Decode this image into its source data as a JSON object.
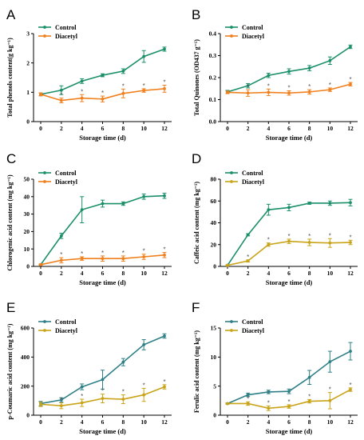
{
  "chart_data": [
    {
      "panel": "A",
      "type": "line",
      "x": [
        0,
        2,
        4,
        6,
        8,
        10,
        12
      ],
      "xlabel": "Storage time (d)",
      "ylabel": "Total phenols content(g kg⁻¹)",
      "ylim": [
        0,
        3
      ],
      "yticks": [
        "0",
        "1",
        "2",
        "3"
      ],
      "yticks_values": [
        0,
        1,
        2,
        3
      ],
      "series": [
        {
          "name": "Control",
          "color": "#1a8f6a",
          "values": [
            0.93,
            1.07,
            1.38,
            1.58,
            1.72,
            2.22,
            2.47
          ],
          "errors": [
            0.05,
            0.15,
            0.08,
            0.05,
            0.08,
            0.2,
            0.07
          ]
        },
        {
          "name": "Diacetyl",
          "color": "#f07f1c",
          "values": [
            0.93,
            0.72,
            0.8,
            0.77,
            0.96,
            1.06,
            1.12
          ],
          "errors": [
            0.05,
            0.08,
            0.12,
            0.1,
            0.15,
            0.06,
            0.12
          ]
        }
      ],
      "stars_x": [
        2,
        4,
        6,
        8,
        10,
        12
      ]
    },
    {
      "panel": "B",
      "type": "line",
      "x": [
        0,
        2,
        4,
        6,
        8,
        10,
        12
      ],
      "xlabel": "Storage time (d)",
      "ylabel": "Total Quinones (OD437 g⁻¹)",
      "ylim": [
        0,
        0.4
      ],
      "yticks": [
        "0.0",
        "0.1",
        "0.2",
        "0.3",
        "0.4"
      ],
      "yticks_values": [
        0,
        0.1,
        0.2,
        0.3,
        0.4
      ],
      "series": [
        {
          "name": "Control",
          "color": "#1a8f6a",
          "values": [
            0.135,
            0.163,
            0.21,
            0.228,
            0.243,
            0.277,
            0.34
          ],
          "errors": [
            0.007,
            0.01,
            0.01,
            0.012,
            0.012,
            0.017,
            0.008
          ]
        },
        {
          "name": "Diacetyl",
          "color": "#f07f1c",
          "values": [
            0.133,
            0.13,
            0.133,
            0.13,
            0.135,
            0.145,
            0.17
          ],
          "errors": [
            0.006,
            0.015,
            0.015,
            0.01,
            0.01,
            0.008,
            0.008
          ]
        }
      ],
      "stars_x": [
        2,
        4,
        6,
        8,
        10,
        12
      ]
    },
    {
      "panel": "C",
      "type": "line",
      "x": [
        0,
        2,
        4,
        6,
        8,
        10,
        12
      ],
      "xlabel": "Storage time (d)",
      "ylabel": "Chlorogenic acid content (mg kg⁻¹)",
      "ylim": [
        0,
        50
      ],
      "yticks": [
        "0",
        "10",
        "20",
        "30",
        "40",
        "50"
      ],
      "yticks_values": [
        0,
        10,
        20,
        30,
        40,
        50
      ],
      "series": [
        {
          "name": "Control",
          "color": "#1a8f6a",
          "values": [
            1,
            17.5,
            32.5,
            36,
            36,
            40,
            40.5
          ],
          "errors": [
            0.3,
            1.5,
            7.5,
            2,
            1,
            1.5,
            1.5
          ]
        },
        {
          "name": "Diacetyl",
          "color": "#f07f1c",
          "values": [
            1,
            3.5,
            4.5,
            4.5,
            4.5,
            5.5,
            6.5
          ],
          "errors": [
            0.3,
            1.5,
            1,
            1.5,
            1.5,
            1.5,
            1.5
          ]
        }
      ],
      "stars_x": [
        2,
        4,
        6,
        8,
        10,
        12
      ]
    },
    {
      "panel": "D",
      "type": "line",
      "x": [
        0,
        2,
        4,
        6,
        8,
        10,
        12
      ],
      "xlabel": "Storage time (d)",
      "ylabel": "Caffeic acid content (mg kg⁻¹)",
      "ylim": [
        0,
        80
      ],
      "yticks": [
        "0",
        "20",
        "40",
        "60",
        "80"
      ],
      "yticks_values": [
        0,
        20,
        40,
        60,
        80
      ],
      "series": [
        {
          "name": "Control",
          "color": "#1a8f6a",
          "values": [
            1,
            29,
            52,
            54,
            58,
            58,
            58.5
          ],
          "errors": [
            0.5,
            1,
            5,
            3,
            1,
            2,
            3
          ]
        },
        {
          "name": "Diacetyl",
          "color": "#c9a318",
          "values": [
            1,
            5,
            20,
            23,
            22,
            21.5,
            22
          ],
          "errors": [
            0.5,
            1,
            1.5,
            2,
            3,
            4,
            2
          ]
        }
      ],
      "stars_x": [
        2,
        4,
        6,
        8,
        10,
        12
      ]
    },
    {
      "panel": "E",
      "type": "line",
      "x": [
        0,
        2,
        4,
        6,
        8,
        10,
        12
      ],
      "xlabel": "Storage time (d)",
      "ylabel": "p-Coumaric acid content (mg kg⁻¹)",
      "ylim": [
        0,
        600
      ],
      "yticks": [
        "0",
        "200",
        "400",
        "600"
      ],
      "yticks_values": [
        0,
        200,
        400,
        600
      ],
      "series": [
        {
          "name": "Control",
          "color": "#2e7f86",
          "values": [
            80,
            105,
            195,
            245,
            365,
            485,
            545
          ],
          "errors": [
            15,
            15,
            20,
            65,
            25,
            35,
            15
          ]
        },
        {
          "name": "Diacetyl",
          "color": "#c9a318",
          "values": [
            75,
            65,
            85,
            115,
            110,
            140,
            195
          ],
          "errors": [
            15,
            20,
            25,
            30,
            30,
            45,
            15
          ]
        }
      ],
      "stars_x": [
        2,
        4,
        6,
        8,
        10,
        12
      ]
    },
    {
      "panel": "F",
      "type": "line",
      "x": [
        0,
        2,
        4,
        6,
        8,
        10,
        12
      ],
      "xlabel": "Storage time (d)",
      "ylabel": "Ferulic acid content (mg kg⁻¹)",
      "ylim": [
        0,
        15
      ],
      "yticks": [
        "0",
        "5",
        "10",
        "15"
      ],
      "yticks_values": [
        0,
        5,
        10,
        15
      ],
      "series": [
        {
          "name": "Control",
          "color": "#2e7f86",
          "values": [
            2,
            3.5,
            4,
            4.1,
            6.5,
            9.2,
            11
          ],
          "errors": [
            0.1,
            0.3,
            0.3,
            0.4,
            1.2,
            1.8,
            1.5
          ]
        },
        {
          "name": "Diacetyl",
          "color": "#c9a318",
          "values": [
            2,
            2,
            1.2,
            1.5,
            2.4,
            2.5,
            4.4
          ],
          "errors": [
            0.1,
            0.3,
            0.4,
            0.3,
            0.3,
            1.4,
            0.3
          ]
        }
      ],
      "stars_x": [
        2,
        4,
        6,
        8,
        10,
        12
      ]
    }
  ],
  "legend": {
    "control": "Control",
    "diacetyl": "Diacetyl"
  },
  "star_symbol": "*"
}
